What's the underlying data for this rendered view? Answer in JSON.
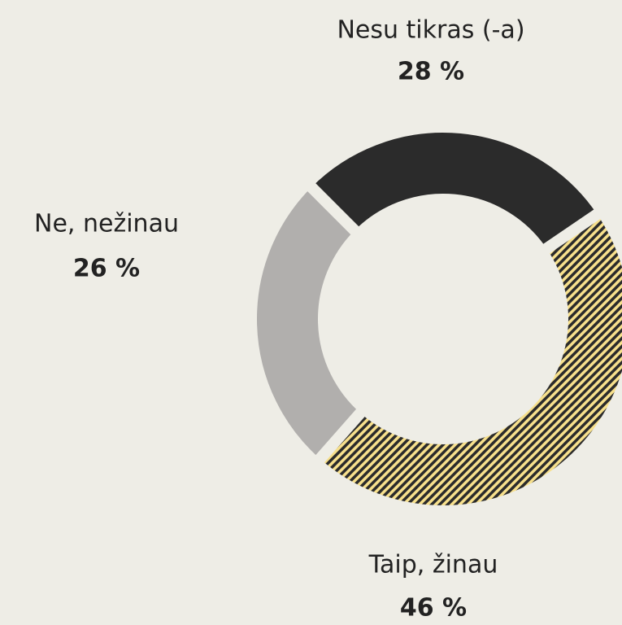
{
  "chart_data": {
    "type": "donut",
    "categories": [
      "Nesu tikras (-a)",
      "Taip, žinau",
      "Ne, nežinau"
    ],
    "values": [
      28,
      46,
      26
    ],
    "value_labels": [
      "28 %",
      "46 %",
      "26 %"
    ],
    "colors": [
      "#2b2b2b",
      "#f7e08c",
      "#b1afad"
    ]
  }
}
